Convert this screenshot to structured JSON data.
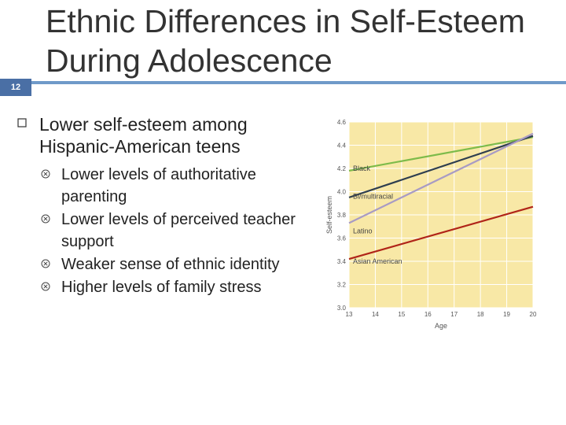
{
  "slide": {
    "number": "12",
    "title": "Ethnic Differences in Self-Esteem During Adolescence",
    "colors": {
      "accent": "#6f9ac9",
      "number_box": "#4a6fa5"
    }
  },
  "bullets": {
    "main": "Lower self-esteem among Hispanic-American teens",
    "subs": [
      "Lower levels of authoritative parenting",
      "Lower levels of perceived teacher support",
      "Weaker sense of ethnic identity",
      "Higher levels of family stress"
    ]
  },
  "chart_data": {
    "type": "line",
    "xlabel": "Age",
    "ylabel": "Self-esteem",
    "xlim": [
      13,
      20
    ],
    "ylim": [
      3.0,
      4.6
    ],
    "x_ticks": [
      "13",
      "14",
      "15",
      "16",
      "17",
      "18",
      "19",
      "20"
    ],
    "y_ticks": [
      "3.0",
      "3.2",
      "3.4",
      "3.6",
      "3.8",
      "4.0",
      "4.2",
      "4.4",
      "4.6"
    ],
    "grid": true,
    "background": "#f8e8a6",
    "series": [
      {
        "name": "Black",
        "color": "#7dbb4a",
        "x": [
          13,
          20
        ],
        "y": [
          4.18,
          4.47
        ]
      },
      {
        "name": "Bi/multiracial",
        "color": "#2e3e4f",
        "x": [
          13,
          20
        ],
        "y": [
          3.95,
          4.48
        ]
      },
      {
        "name": "Latino",
        "color": "#a89bc4",
        "x": [
          13,
          20
        ],
        "y": [
          3.73,
          4.5
        ]
      },
      {
        "name": "Asian American",
        "color": "#b02418",
        "x": [
          13,
          20
        ],
        "y": [
          3.42,
          3.87
        ]
      }
    ],
    "labels": [
      {
        "text": "Black",
        "x": 13.15,
        "y": 4.2
      },
      {
        "text": "Bi/multiracial",
        "x": 13.15,
        "y": 3.96
      },
      {
        "text": "Latino",
        "x": 13.15,
        "y": 3.66
      },
      {
        "text": "Asian American",
        "x": 13.15,
        "y": 3.4
      }
    ]
  }
}
